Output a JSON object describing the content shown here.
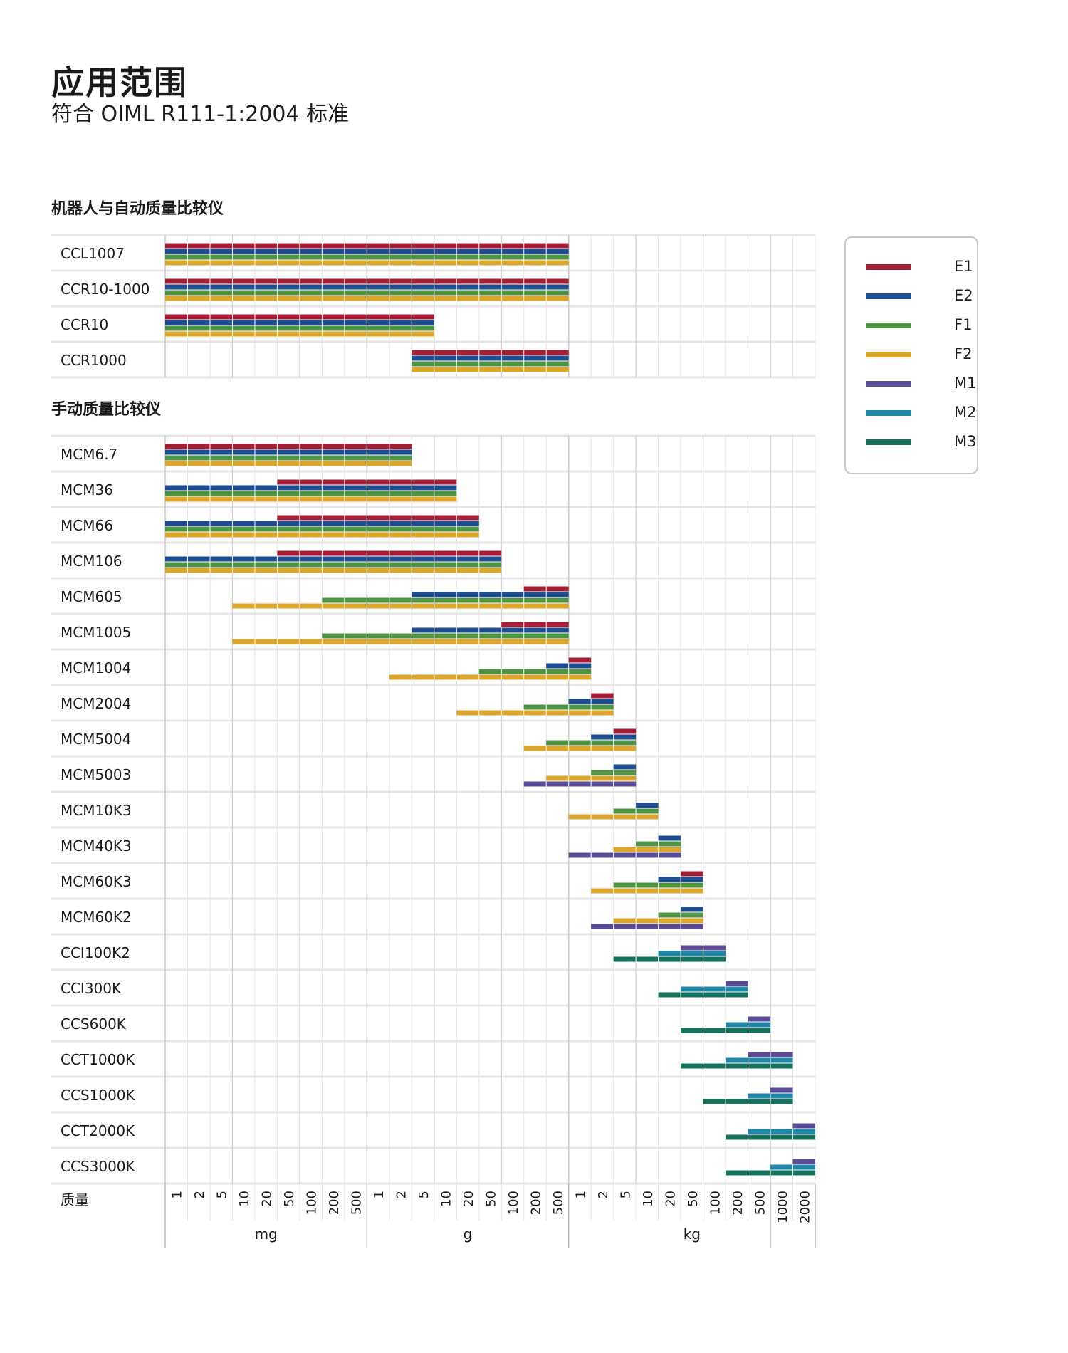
{
  "header": {
    "title": "应用范围",
    "subtitle": "符合 OIML R111-1:2004 标准"
  },
  "sections": {
    "robot": "机器人与自动质量比较仪",
    "manual": "手动质量比较仪"
  },
  "legend": {
    "items": [
      {
        "label": "E1",
        "color": "#a51e36"
      },
      {
        "label": "E2",
        "color": "#1f4d91"
      },
      {
        "label": "F1",
        "color": "#4f9444"
      },
      {
        "label": "F2",
        "color": "#dca52b"
      },
      {
        "label": "M1",
        "color": "#5b4c9a"
      },
      {
        "label": "M2",
        "color": "#1f87aa"
      },
      {
        "label": "M3",
        "color": "#16725c"
      }
    ]
  },
  "chart_data": {
    "type": "bar",
    "xlabel": "质量",
    "ticks": [
      "1",
      "2",
      "5",
      "10",
      "20",
      "50",
      "100",
      "200",
      "500",
      "1",
      "2",
      "5",
      "10",
      "20",
      "50",
      "100",
      "200",
      "500",
      "1",
      "2",
      "5",
      "10",
      "20",
      "50",
      "100",
      "200",
      "500",
      "1000",
      "2000"
    ],
    "units": [
      {
        "label": "mg",
        "from": 0,
        "to": 9
      },
      {
        "label": "g",
        "from": 9,
        "to": 18
      },
      {
        "label": "kg",
        "from": 18,
        "to": 29
      }
    ],
    "classes": [
      "E1",
      "E2",
      "F1",
      "F2",
      "M1",
      "M2",
      "M3"
    ],
    "groups": [
      {
        "name": "机器人与自动质量比较仪",
        "instruments": [
          {
            "name": "CCL1007",
            "ranges": {
              "E1": [
                0,
                18
              ],
              "E2": [
                0,
                18
              ],
              "F1": [
                0,
                18
              ],
              "F2": [
                0,
                18
              ]
            }
          },
          {
            "name": "CCR10-1000",
            "ranges": {
              "E1": [
                0,
                18
              ],
              "E2": [
                0,
                18
              ],
              "F1": [
                0,
                18
              ],
              "F2": [
                0,
                18
              ]
            }
          },
          {
            "name": "CCR10",
            "ranges": {
              "E1": [
                0,
                12
              ],
              "E2": [
                0,
                12
              ],
              "F1": [
                0,
                12
              ],
              "F2": [
                0,
                12
              ]
            }
          },
          {
            "name": "CCR1000",
            "ranges": {
              "E1": [
                11,
                18
              ],
              "E2": [
                11,
                18
              ],
              "F1": [
                11,
                18
              ],
              "F2": [
                11,
                18
              ]
            }
          }
        ]
      },
      {
        "name": "手动质量比较仪",
        "instruments": [
          {
            "name": "MCM6.7",
            "ranges": {
              "E1": [
                0,
                11
              ],
              "E2": [
                0,
                11
              ],
              "F1": [
                0,
                11
              ],
              "F2": [
                0,
                11
              ]
            }
          },
          {
            "name": "MCM36",
            "ranges": {
              "E1": [
                5,
                13
              ],
              "E2": [
                0,
                13
              ],
              "F1": [
                0,
                13
              ],
              "F2": [
                0,
                13
              ]
            }
          },
          {
            "name": "MCM66",
            "ranges": {
              "E1": [
                5,
                14
              ],
              "E2": [
                0,
                14
              ],
              "F1": [
                0,
                14
              ],
              "F2": [
                0,
                14
              ]
            }
          },
          {
            "name": "MCM106",
            "ranges": {
              "E1": [
                5,
                15
              ],
              "E2": [
                0,
                15
              ],
              "F1": [
                0,
                15
              ],
              "F2": [
                0,
                15
              ]
            }
          },
          {
            "name": "MCM605",
            "ranges": {
              "E1": [
                16,
                18
              ],
              "E2": [
                11,
                18
              ],
              "F1": [
                7,
                18
              ],
              "F2": [
                3,
                18
              ]
            }
          },
          {
            "name": "MCM1005",
            "ranges": {
              "E1": [
                15,
                18
              ],
              "E2": [
                11,
                18
              ],
              "F1": [
                7,
                18
              ],
              "F2": [
                3,
                18
              ]
            }
          },
          {
            "name": "MCM1004",
            "ranges": {
              "E1": [
                18,
                19
              ],
              "E2": [
                17,
                19
              ],
              "F1": [
                14,
                19
              ],
              "F2": [
                10,
                19
              ]
            }
          },
          {
            "name": "MCM2004",
            "ranges": {
              "E1": [
                19,
                20
              ],
              "E2": [
                18,
                20
              ],
              "F1": [
                16,
                20
              ],
              "F2": [
                13,
                20
              ]
            }
          },
          {
            "name": "MCM5004",
            "ranges": {
              "E1": [
                20,
                21
              ],
              "E2": [
                19,
                21
              ],
              "F1": [
                17,
                21
              ],
              "F2": [
                16,
                21
              ]
            }
          },
          {
            "name": "MCM5003",
            "ranges": {
              "E2": [
                20,
                21
              ],
              "F1": [
                19,
                21
              ],
              "F2": [
                17,
                21
              ],
              "M1": [
                16,
                21
              ]
            }
          },
          {
            "name": "MCM10K3",
            "ranges": {
              "E2": [
                21,
                22
              ],
              "F1": [
                20,
                22
              ],
              "F2": [
                18,
                22
              ]
            }
          },
          {
            "name": "MCM40K3",
            "ranges": {
              "E2": [
                22,
                23
              ],
              "F1": [
                21,
                23
              ],
              "F2": [
                20,
                23
              ],
              "M1": [
                18,
                23
              ]
            }
          },
          {
            "name": "MCM60K3",
            "ranges": {
              "E1": [
                23,
                24
              ],
              "E2": [
                22,
                24
              ],
              "F1": [
                20,
                24
              ],
              "F2": [
                19,
                24
              ]
            }
          },
          {
            "name": "MCM60K2",
            "ranges": {
              "E2": [
                23,
                24
              ],
              "F1": [
                22,
                24
              ],
              "F2": [
                20,
                24
              ],
              "M1": [
                19,
                24
              ]
            }
          },
          {
            "name": "CCI100K2",
            "ranges": {
              "M1": [
                23,
                25
              ],
              "M2": [
                22,
                25
              ],
              "M3": [
                20,
                25
              ]
            }
          },
          {
            "name": "CCI300K",
            "ranges": {
              "M1": [
                25,
                26
              ],
              "M2": [
                23,
                26
              ],
              "M3": [
                22,
                26
              ]
            }
          },
          {
            "name": "CCS600K",
            "ranges": {
              "M1": [
                26,
                27
              ],
              "M2": [
                25,
                27
              ],
              "M3": [
                23,
                27
              ]
            }
          },
          {
            "name": "CCT1000K",
            "ranges": {
              "M1": [
                26,
                28
              ],
              "M2": [
                25,
                28
              ],
              "M3": [
                23,
                28
              ]
            }
          },
          {
            "name": "CCS1000K",
            "ranges": {
              "M1": [
                27,
                28
              ],
              "M2": [
                26,
                28
              ],
              "M3": [
                24,
                28
              ]
            }
          },
          {
            "name": "CCT2000K",
            "ranges": {
              "M1": [
                28,
                29
              ],
              "M2": [
                26,
                29
              ],
              "M3": [
                25,
                29
              ]
            }
          },
          {
            "name": "CCS3000K",
            "ranges": {
              "M1": [
                28,
                29
              ],
              "M2": [
                27,
                29
              ],
              "M3": [
                25,
                29
              ]
            }
          }
        ]
      }
    ],
    "grid": true,
    "legend_position": "right"
  }
}
